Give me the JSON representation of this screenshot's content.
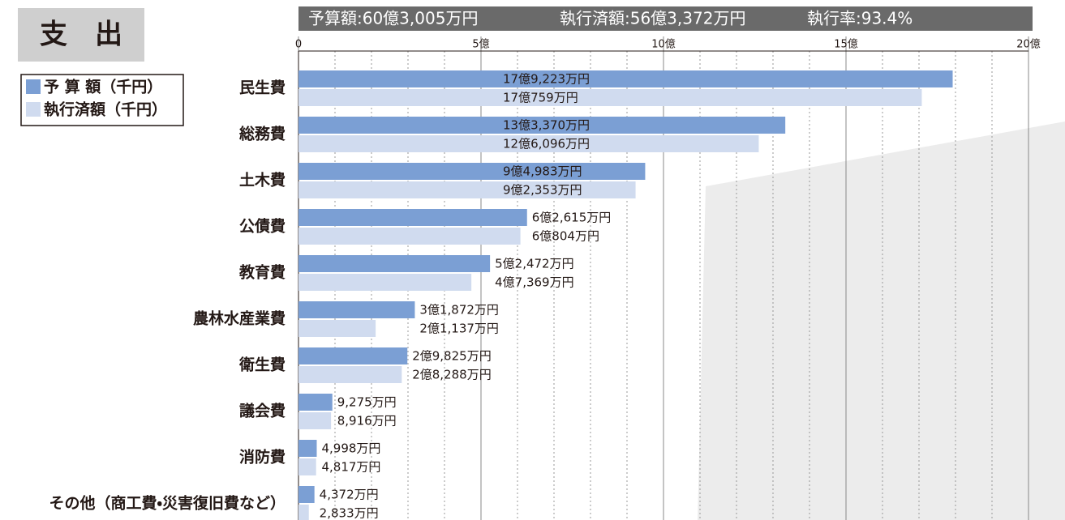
{
  "chart_data": {
    "type": "hbar",
    "title": "支　出",
    "summary": [
      "予算額:60億3,005万円",
      "執行済額:56億3,372万円",
      "執行率:93.4%"
    ],
    "categories": [
      "民生費",
      "総務費",
      "土木費",
      "公債費",
      "教育費",
      "農林水産業費",
      "衛生費",
      "議会費",
      "消防費",
      "その他（商工費・災害復旧費など）"
    ],
    "series": [
      {
        "name": "予 算 額（千円）",
        "color": "#7b9fd4",
        "values": [
          17.9223,
          13.337,
          9.4983,
          6.2615,
          5.2472,
          3.1872,
          2.9825,
          0.9275,
          0.4998,
          0.4372
        ],
        "value_labels": [
          "17億9,223万円",
          "13億3,370万円",
          "9億4,983万円",
          "6億2,615万円",
          "5億2,472万円",
          "3億1,872万円",
          "2億9,825万円",
          "9,275万円",
          "4,998万円",
          "4,372万円"
        ]
      },
      {
        "name": "執行済額（千円）",
        "color": "#d0dbef",
        "values": [
          17.0759,
          12.6096,
          9.2353,
          6.0804,
          4.7369,
          2.1137,
          2.8288,
          0.8916,
          0.4817,
          0.2833
        ],
        "value_labels": [
          "17億759万円",
          "12億6,096万円",
          "9億2,353万円",
          "6億804万円",
          "4億7,369万円",
          "2億1,137万円",
          "2億8,288万円",
          "8,916万円",
          "4,817万円",
          "2,833万円"
        ]
      }
    ],
    "xlim": [
      0,
      20
    ],
    "xticks": [
      0,
      {
        "value": 5,
        "label": "5億"
      },
      {
        "value": 10,
        "label": "10億"
      },
      {
        "value": 15,
        "label": "15億"
      },
      {
        "value": 20,
        "label": "20億"
      }
    ],
    "xminorticks": [
      1,
      2,
      3,
      4,
      6,
      7,
      8,
      9,
      11,
      12,
      13,
      14,
      16,
      17,
      18,
      19
    ],
    "grid": true
  }
}
